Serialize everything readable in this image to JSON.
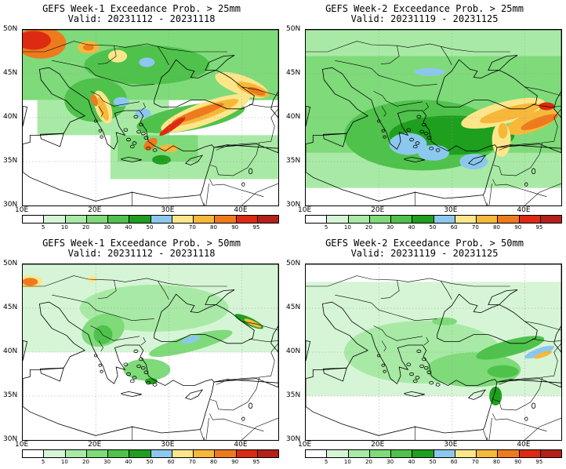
{
  "panels": [
    {
      "title_line1": "GEFS Week-1 Exceedance Prob. > 25mm",
      "title_line2": "Valid: 20231112 - 20231118",
      "variant": "w1_25"
    },
    {
      "title_line1": "GEFS Week-2 Exceedance Prob. > 25mm",
      "title_line2": "Valid: 20231119 - 20231125",
      "variant": "w2_25"
    },
    {
      "title_line1": "GEFS Week-1 Exceedance Prob. > 50mm",
      "title_line2": "Valid: 20231112 - 20231118",
      "variant": "w1_50"
    },
    {
      "title_line1": "GEFS Week-2 Exceedance Prob. > 50mm",
      "title_line2": "Valid: 20231119 - 20231125",
      "variant": "w2_50"
    }
  ],
  "axes": {
    "lat_labels": [
      "50N",
      "45N",
      "40N",
      "35N",
      "30N"
    ],
    "lon_labels": [
      "10E",
      "20E",
      "30E",
      "40E"
    ],
    "lat_range": [
      30,
      50
    ],
    "lon_range": [
      10,
      45
    ]
  },
  "colorbar": {
    "labels": [
      "5",
      "10",
      "20",
      "30",
      "40",
      "50",
      "60",
      "70",
      "80",
      "90",
      "95"
    ],
    "colors": [
      "#ffffff",
      "#d6f5d6",
      "#a8eaa5",
      "#7fda7a",
      "#4fc24c",
      "#1e9f1e",
      "#8cc8ee",
      "#fde68a",
      "#f7b83a",
      "#ee7a1e",
      "#dd2a12",
      "#b52018"
    ]
  }
}
